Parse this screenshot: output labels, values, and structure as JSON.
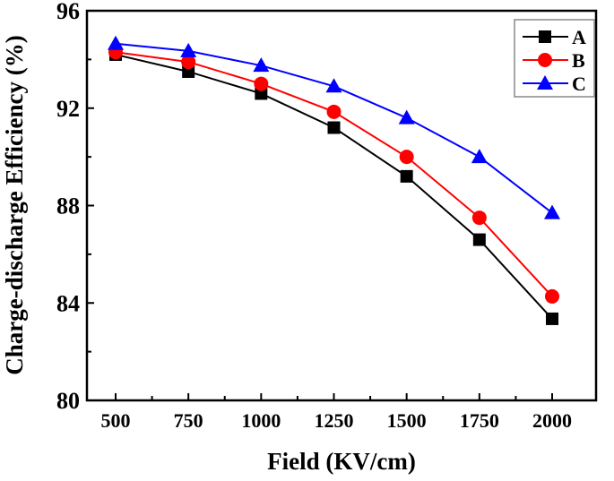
{
  "chart_data": {
    "type": "line",
    "title": "",
    "xlabel": "Field (KV/cm)",
    "ylabel": "Charge-discharge Efficiency (%)",
    "x": [
      500,
      750,
      1000,
      1250,
      1500,
      1750,
      2000
    ],
    "xticks": [
      "500",
      "750",
      "1000",
      "1250",
      "1500",
      "1750",
      "2000"
    ],
    "xlim": [
      300,
      2200
    ],
    "ylim": [
      80,
      96
    ],
    "yticks": [
      "80",
      "84",
      "88",
      "92",
      "96"
    ],
    "grid": false,
    "legend_placement": "top-right",
    "series": [
      {
        "name": "A",
        "color": "#000000",
        "marker": "square",
        "values": [
          94.2,
          93.5,
          92.6,
          91.2,
          89.2,
          86.6,
          83.35
        ]
      },
      {
        "name": "B",
        "color": "#ff0000",
        "marker": "circle",
        "values": [
          94.3,
          93.9,
          93.0,
          91.85,
          90.0,
          87.5,
          84.27
        ]
      },
      {
        "name": "C",
        "color": "#0000ff",
        "marker": "triangle",
        "values": [
          94.65,
          94.35,
          93.75,
          92.9,
          91.6,
          90.0,
          87.7
        ]
      }
    ]
  }
}
